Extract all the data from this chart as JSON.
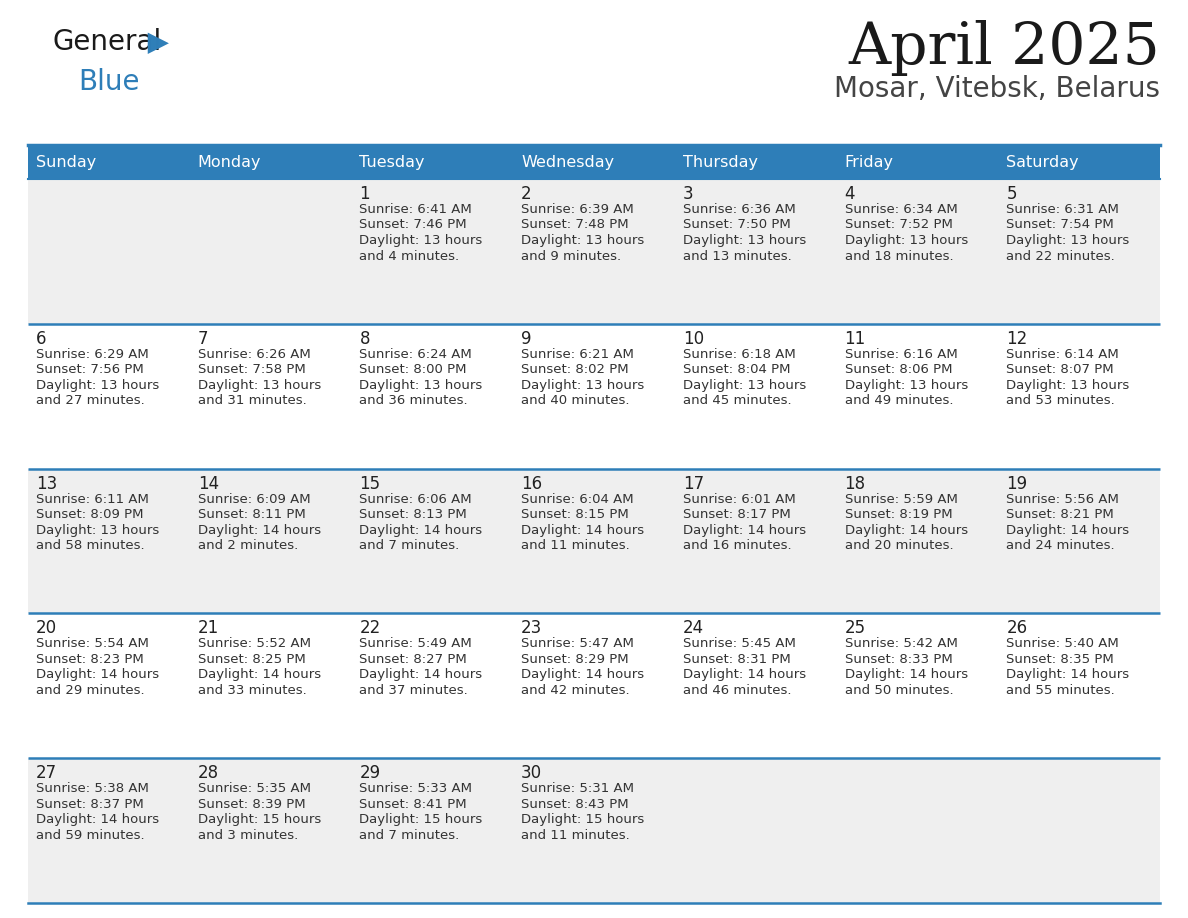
{
  "title": "April 2025",
  "subtitle": "Mosar, Vitebsk, Belarus",
  "header_bg": "#2E7EB8",
  "header_text_color": "#FFFFFF",
  "days_of_week": [
    "Sunday",
    "Monday",
    "Tuesday",
    "Wednesday",
    "Thursday",
    "Friday",
    "Saturday"
  ],
  "row_bg_even": "#EFEFEF",
  "row_bg_odd": "#FFFFFF",
  "divider_color": "#2E7EB8",
  "cell_text_color": "#333333",
  "date_text_color": "#222222",
  "calendar_data": [
    [
      {
        "day": "",
        "sunrise": "",
        "sunset": "",
        "daylight": ""
      },
      {
        "day": "",
        "sunrise": "",
        "sunset": "",
        "daylight": ""
      },
      {
        "day": "1",
        "sunrise": "Sunrise: 6:41 AM",
        "sunset": "Sunset: 7:46 PM",
        "daylight": "Daylight: 13 hours and 4 minutes."
      },
      {
        "day": "2",
        "sunrise": "Sunrise: 6:39 AM",
        "sunset": "Sunset: 7:48 PM",
        "daylight": "Daylight: 13 hours and 9 minutes."
      },
      {
        "day": "3",
        "sunrise": "Sunrise: 6:36 AM",
        "sunset": "Sunset: 7:50 PM",
        "daylight": "Daylight: 13 hours and 13 minutes."
      },
      {
        "day": "4",
        "sunrise": "Sunrise: 6:34 AM",
        "sunset": "Sunset: 7:52 PM",
        "daylight": "Daylight: 13 hours and 18 minutes."
      },
      {
        "day": "5",
        "sunrise": "Sunrise: 6:31 AM",
        "sunset": "Sunset: 7:54 PM",
        "daylight": "Daylight: 13 hours and 22 minutes."
      }
    ],
    [
      {
        "day": "6",
        "sunrise": "Sunrise: 6:29 AM",
        "sunset": "Sunset: 7:56 PM",
        "daylight": "Daylight: 13 hours and 27 minutes."
      },
      {
        "day": "7",
        "sunrise": "Sunrise: 6:26 AM",
        "sunset": "Sunset: 7:58 PM",
        "daylight": "Daylight: 13 hours and 31 minutes."
      },
      {
        "day": "8",
        "sunrise": "Sunrise: 6:24 AM",
        "sunset": "Sunset: 8:00 PM",
        "daylight": "Daylight: 13 hours and 36 minutes."
      },
      {
        "day": "9",
        "sunrise": "Sunrise: 6:21 AM",
        "sunset": "Sunset: 8:02 PM",
        "daylight": "Daylight: 13 hours and 40 minutes."
      },
      {
        "day": "10",
        "sunrise": "Sunrise: 6:18 AM",
        "sunset": "Sunset: 8:04 PM",
        "daylight": "Daylight: 13 hours and 45 minutes."
      },
      {
        "day": "11",
        "sunrise": "Sunrise: 6:16 AM",
        "sunset": "Sunset: 8:06 PM",
        "daylight": "Daylight: 13 hours and 49 minutes."
      },
      {
        "day": "12",
        "sunrise": "Sunrise: 6:14 AM",
        "sunset": "Sunset: 8:07 PM",
        "daylight": "Daylight: 13 hours and 53 minutes."
      }
    ],
    [
      {
        "day": "13",
        "sunrise": "Sunrise: 6:11 AM",
        "sunset": "Sunset: 8:09 PM",
        "daylight": "Daylight: 13 hours and 58 minutes."
      },
      {
        "day": "14",
        "sunrise": "Sunrise: 6:09 AM",
        "sunset": "Sunset: 8:11 PM",
        "daylight": "Daylight: 14 hours and 2 minutes."
      },
      {
        "day": "15",
        "sunrise": "Sunrise: 6:06 AM",
        "sunset": "Sunset: 8:13 PM",
        "daylight": "Daylight: 14 hours and 7 minutes."
      },
      {
        "day": "16",
        "sunrise": "Sunrise: 6:04 AM",
        "sunset": "Sunset: 8:15 PM",
        "daylight": "Daylight: 14 hours and 11 minutes."
      },
      {
        "day": "17",
        "sunrise": "Sunrise: 6:01 AM",
        "sunset": "Sunset: 8:17 PM",
        "daylight": "Daylight: 14 hours and 16 minutes."
      },
      {
        "day": "18",
        "sunrise": "Sunrise: 5:59 AM",
        "sunset": "Sunset: 8:19 PM",
        "daylight": "Daylight: 14 hours and 20 minutes."
      },
      {
        "day": "19",
        "sunrise": "Sunrise: 5:56 AM",
        "sunset": "Sunset: 8:21 PM",
        "daylight": "Daylight: 14 hours and 24 minutes."
      }
    ],
    [
      {
        "day": "20",
        "sunrise": "Sunrise: 5:54 AM",
        "sunset": "Sunset: 8:23 PM",
        "daylight": "Daylight: 14 hours and 29 minutes."
      },
      {
        "day": "21",
        "sunrise": "Sunrise: 5:52 AM",
        "sunset": "Sunset: 8:25 PM",
        "daylight": "Daylight: 14 hours and 33 minutes."
      },
      {
        "day": "22",
        "sunrise": "Sunrise: 5:49 AM",
        "sunset": "Sunset: 8:27 PM",
        "daylight": "Daylight: 14 hours and 37 minutes."
      },
      {
        "day": "23",
        "sunrise": "Sunrise: 5:47 AM",
        "sunset": "Sunset: 8:29 PM",
        "daylight": "Daylight: 14 hours and 42 minutes."
      },
      {
        "day": "24",
        "sunrise": "Sunrise: 5:45 AM",
        "sunset": "Sunset: 8:31 PM",
        "daylight": "Daylight: 14 hours and 46 minutes."
      },
      {
        "day": "25",
        "sunrise": "Sunrise: 5:42 AM",
        "sunset": "Sunset: 8:33 PM",
        "daylight": "Daylight: 14 hours and 50 minutes."
      },
      {
        "day": "26",
        "sunrise": "Sunrise: 5:40 AM",
        "sunset": "Sunset: 8:35 PM",
        "daylight": "Daylight: 14 hours and 55 minutes."
      }
    ],
    [
      {
        "day": "27",
        "sunrise": "Sunrise: 5:38 AM",
        "sunset": "Sunset: 8:37 PM",
        "daylight": "Daylight: 14 hours and 59 minutes."
      },
      {
        "day": "28",
        "sunrise": "Sunrise: 5:35 AM",
        "sunset": "Sunset: 8:39 PM",
        "daylight": "Daylight: 15 hours and 3 minutes."
      },
      {
        "day": "29",
        "sunrise": "Sunrise: 5:33 AM",
        "sunset": "Sunset: 8:41 PM",
        "daylight": "Daylight: 15 hours and 7 minutes."
      },
      {
        "day": "30",
        "sunrise": "Sunrise: 5:31 AM",
        "sunset": "Sunset: 8:43 PM",
        "daylight": "Daylight: 15 hours and 11 minutes."
      },
      {
        "day": "",
        "sunrise": "",
        "sunset": "",
        "daylight": ""
      },
      {
        "day": "",
        "sunrise": "",
        "sunset": "",
        "daylight": ""
      },
      {
        "day": "",
        "sunrise": "",
        "sunset": "",
        "daylight": ""
      }
    ]
  ]
}
